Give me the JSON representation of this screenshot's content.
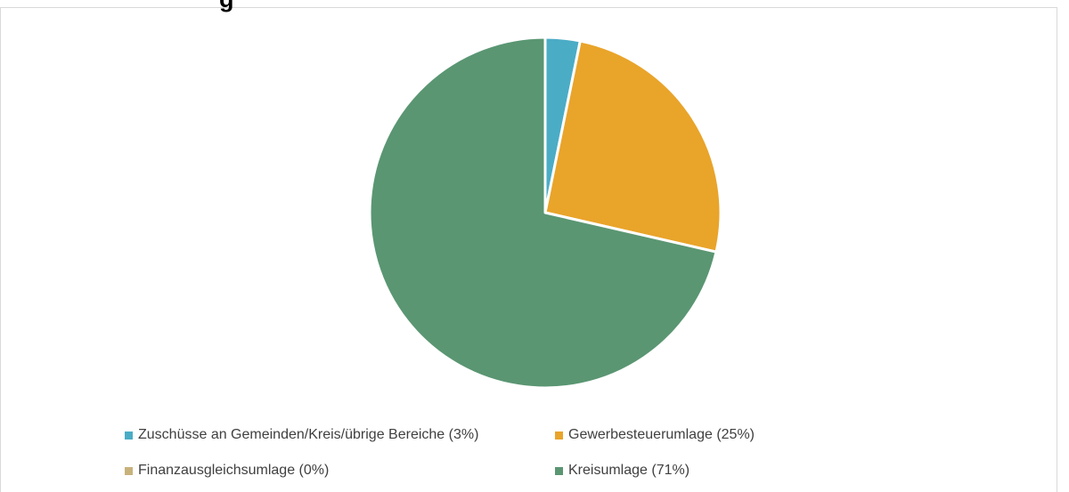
{
  "title_fragment": "g",
  "chart_data": {
    "type": "pie",
    "slices": [
      {
        "label": "Zuschüsse an Gemeinden/Kreis/übrige Bereiche (3%)",
        "value": 3.2,
        "color": "#4bacc6"
      },
      {
        "label": "Gewerbesteuerumlage (25%)",
        "value": 25.4,
        "color": "#e9a42a"
      },
      {
        "label": "Finanzausgleichsumlage (0%)",
        "value": 0.0,
        "color": "#c8b27c"
      },
      {
        "label": "Kreisumlage (71%)",
        "value": 71.4,
        "color": "#5a9672"
      }
    ],
    "start_angle_deg": 0,
    "direction": "clockwise",
    "legend_position": "bottom"
  }
}
